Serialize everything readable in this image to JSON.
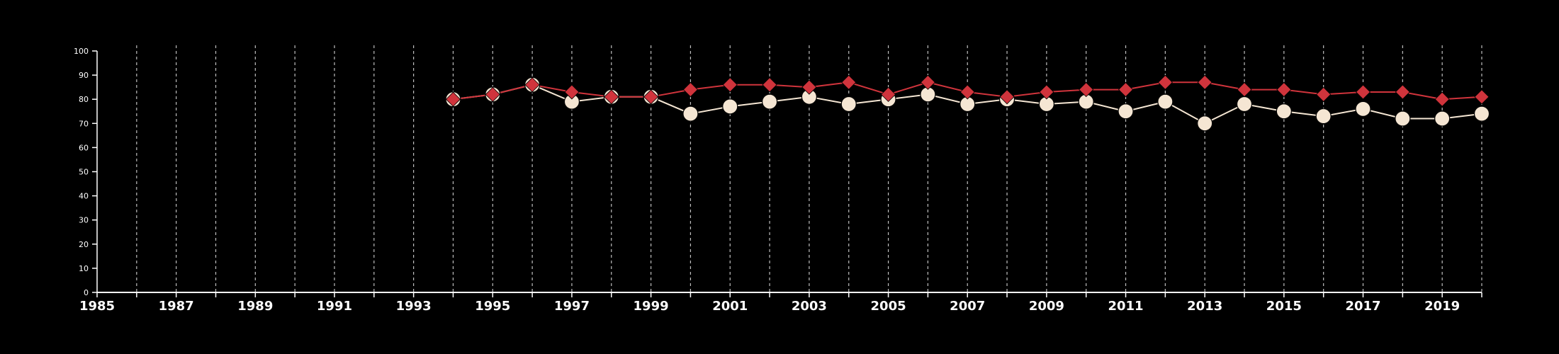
{
  "chart_data": {
    "type": "line",
    "title": "",
    "xlabel": "",
    "ylabel": "",
    "xlim": [
      1985,
      2020
    ],
    "ylim": [
      0,
      100
    ],
    "x_ticks": [
      1985,
      1986,
      1987,
      1988,
      1989,
      1990,
      1991,
      1992,
      1993,
      1994,
      1995,
      1996,
      1997,
      1998,
      1999,
      2000,
      2001,
      2002,
      2003,
      2004,
      2005,
      2006,
      2007,
      2008,
      2009,
      2010,
      2011,
      2012,
      2013,
      2014,
      2015,
      2016,
      2017,
      2018,
      2019,
      2020
    ],
    "x_tick_labels": [
      "1985",
      "1987",
      "1989",
      "1991",
      "1993",
      "1995",
      "1997",
      "1999",
      "2001",
      "2003",
      "2005",
      "2007",
      "2009",
      "2011",
      "2013",
      "2015",
      "2017",
      "2019"
    ],
    "y_ticks": [
      0,
      10,
      20,
      30,
      40,
      50,
      60,
      70,
      80,
      90,
      100
    ],
    "vertical_grid": "dashed",
    "legend": "none",
    "colors": {
      "background": "#000000",
      "axis": "#ffffff",
      "grid": "#bfbfbf",
      "series_circle": "#f5e6d3",
      "series_diamond": "#d0343c"
    },
    "x": [
      1994,
      1995,
      1996,
      1997,
      1998,
      1999,
      2000,
      2001,
      2002,
      2003,
      2004,
      2005,
      2006,
      2007,
      2008,
      2009,
      2010,
      2011,
      2012,
      2013,
      2014,
      2015,
      2016,
      2017,
      2018,
      2019,
      2020
    ],
    "series": [
      {
        "marker": "circle",
        "color": "#f5e6d3",
        "values": [
          80,
          82,
          86,
          79,
          81,
          81,
          74,
          77,
          79,
          81,
          78,
          80,
          82,
          78,
          80,
          78,
          79,
          75,
          79,
          70,
          78,
          75,
          73,
          76,
          72,
          72,
          74
        ]
      },
      {
        "marker": "diamond",
        "color": "#d0343c",
        "values": [
          80,
          82,
          86,
          83,
          81,
          81,
          84,
          86,
          86,
          85,
          87,
          82,
          87,
          83,
          81,
          83,
          84,
          84,
          87,
          87,
          84,
          84,
          82,
          83,
          83,
          80,
          81
        ]
      }
    ]
  }
}
